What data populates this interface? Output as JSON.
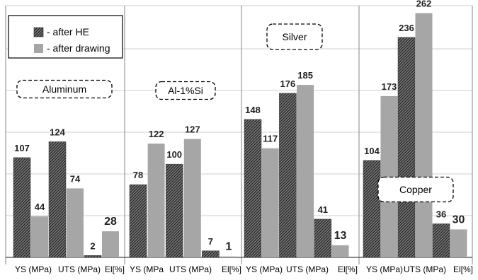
{
  "chart_data": {
    "type": "bar",
    "ylim": [
      0,
      270
    ],
    "grid": true,
    "legend": {
      "placement": "top-left"
    },
    "series": [
      {
        "name": "- after HE",
        "pattern": "hatched",
        "color": "#555555"
      },
      {
        "name": "- after drawing",
        "pattern": "solid",
        "color": "#a6a6a6"
      }
    ],
    "panels": [
      {
        "label": "Aluminum",
        "ticks": [
          "YS (MPa)",
          "UTS (MPa)",
          "El[%]"
        ],
        "bars": [
          {
            "value": 107,
            "label": "107",
            "series": 0
          },
          {
            "value": 44,
            "label": "44",
            "series": 1
          },
          {
            "value": 124,
            "label": "124",
            "series": 0
          },
          {
            "value": 74,
            "label": "74",
            "series": 1
          },
          {
            "value": 2,
            "label": "2",
            "series": 0
          },
          {
            "value": 28,
            "label": "28",
            "series": 1
          }
        ]
      },
      {
        "label": "Al-1%Si",
        "ticks": [
          "YS (MPa",
          "UTS (MPa)",
          "El[%]"
        ],
        "bars": [
          {
            "value": 78,
            "label": "78",
            "series": 0
          },
          {
            "value": 122,
            "label": "122",
            "series": 1
          },
          {
            "value": 100,
            "label": "100",
            "series": 0
          },
          {
            "value": 127,
            "label": "127",
            "series": 1
          },
          {
            "value": 7,
            "label": "7",
            "series": 0
          },
          {
            "value": 1,
            "label": "1",
            "series": 1
          }
        ]
      },
      {
        "label": "Silver",
        "ticks": [
          "YS (MPa)",
          "UTS (MPa)",
          "El[%]"
        ],
        "bars": [
          {
            "value": 148,
            "label": "148",
            "series": 0
          },
          {
            "value": 117,
            "label": "117",
            "series": 1
          },
          {
            "value": 176,
            "label": "176",
            "series": 0
          },
          {
            "value": 185,
            "label": "185",
            "series": 1
          },
          {
            "value": 41,
            "label": "41",
            "series": 0
          },
          {
            "value": 13,
            "label": "13",
            "series": 1
          }
        ]
      },
      {
        "label": "Copper",
        "ticks": [
          "YS (MPa)",
          "UTS (MPa)",
          "El[%]"
        ],
        "bars": [
          {
            "value": 104,
            "label": "104",
            "series": 0
          },
          {
            "value": 173,
            "label": "173",
            "series": 1
          },
          {
            "value": 236,
            "label": "236",
            "series": 0
          },
          {
            "value": 262,
            "label": "262",
            "series": 1
          },
          {
            "value": 36,
            "label": "36",
            "series": 0
          },
          {
            "value": 30,
            "label": "30",
            "series": 1
          }
        ]
      }
    ]
  }
}
